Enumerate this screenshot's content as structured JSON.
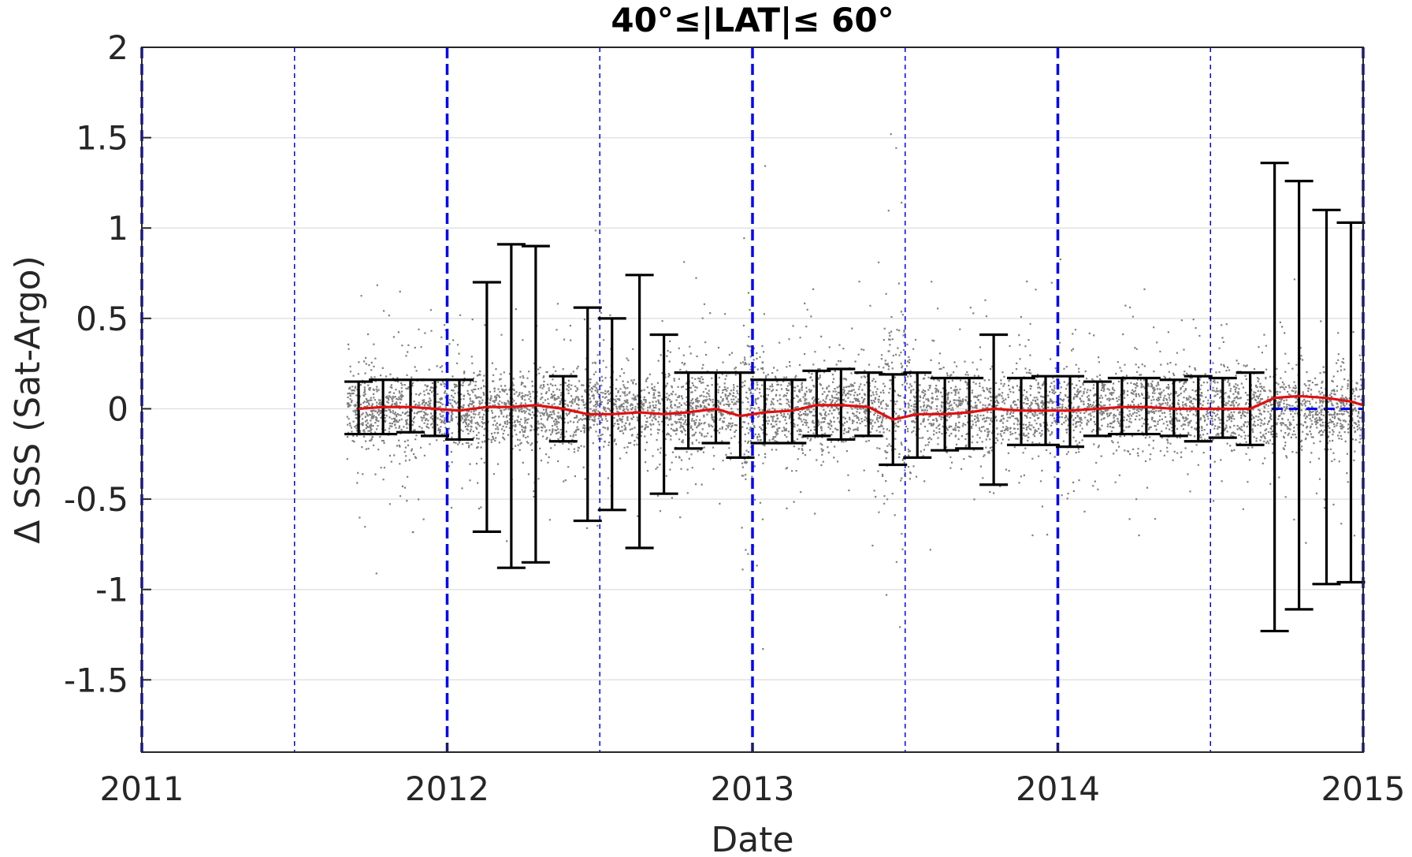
{
  "chart_data": {
    "type": "scatter",
    "title": "40°≤|LAT|≤ 60°",
    "xlabel": "Date",
    "ylabel": "Δ SSS (Sat-Argo)",
    "xlim": [
      2011,
      2015
    ],
    "ylim": [
      -1.9,
      2
    ],
    "xticks": [
      2011,
      2012,
      2013,
      2014,
      2015
    ],
    "xtick_labels": [
      "2011",
      "2012",
      "2013",
      "2014",
      "2015"
    ],
    "yticks": [
      -1.5,
      -1,
      -0.5,
      0,
      0.5,
      1,
      1.5,
      2
    ],
    "ytick_labels": [
      "-1.5",
      "-1",
      "-0.5",
      "0",
      "0.5",
      "1",
      "1.5",
      "2"
    ],
    "grid": "horizontal",
    "colors": {
      "scatter": "#808080",
      "mean_line": "#e01010",
      "errorbar": "#000000",
      "year_lines": "#0000ff",
      "zero_line": "#0000ff"
    },
    "scatter_density": {
      "x_range": [
        2011.67,
        2015
      ],
      "typical_spread_std": 0.1,
      "note_regions": "noisier spread near 2013.0 and 2013.5"
    },
    "mean_line": {
      "x": [
        2011.71,
        2011.79,
        2011.88,
        2011.96,
        2012.04,
        2012.13,
        2012.21,
        2012.29,
        2012.38,
        2012.46,
        2012.54,
        2012.63,
        2012.71,
        2012.79,
        2012.88,
        2012.96,
        2013.04,
        2013.13,
        2013.21,
        2013.29,
        2013.38,
        2013.46,
        2013.54,
        2013.63,
        2013.71,
        2013.79,
        2013.88,
        2013.96,
        2014.04,
        2014.13,
        2014.21,
        2014.29,
        2014.38,
        2014.46,
        2014.54,
        2014.63,
        2014.71,
        2014.79,
        2014.88,
        2014.96,
        2015.0
      ],
      "y": [
        0.0,
        0.01,
        0.01,
        0.0,
        -0.01,
        0.01,
        0.01,
        0.02,
        0.0,
        -0.03,
        -0.03,
        -0.02,
        -0.03,
        -0.02,
        0.0,
        -0.04,
        -0.02,
        -0.01,
        0.02,
        0.02,
        0.01,
        -0.06,
        -0.03,
        -0.03,
        -0.02,
        0.0,
        -0.01,
        -0.01,
        -0.01,
        0.0,
        0.01,
        0.01,
        0.0,
        0.0,
        0.0,
        0.0,
        0.06,
        0.07,
        0.06,
        0.04,
        0.02
      ]
    },
    "errorbars": [
      {
        "x": 2011.71,
        "lower": -0.14,
        "upper": 0.15
      },
      {
        "x": 2011.79,
        "lower": -0.14,
        "upper": 0.16
      },
      {
        "x": 2011.88,
        "lower": -0.13,
        "upper": 0.16
      },
      {
        "x": 2011.96,
        "lower": -0.15,
        "upper": 0.16
      },
      {
        "x": 2012.04,
        "lower": -0.17,
        "upper": 0.16
      },
      {
        "x": 2012.13,
        "lower": -0.68,
        "upper": 0.7
      },
      {
        "x": 2012.21,
        "lower": -0.88,
        "upper": 0.91
      },
      {
        "x": 2012.29,
        "lower": -0.85,
        "upper": 0.9
      },
      {
        "x": 2012.38,
        "lower": -0.18,
        "upper": 0.18
      },
      {
        "x": 2012.46,
        "lower": -0.62,
        "upper": 0.56
      },
      {
        "x": 2012.54,
        "lower": -0.56,
        "upper": 0.5
      },
      {
        "x": 2012.63,
        "lower": -0.77,
        "upper": 0.74
      },
      {
        "x": 2012.71,
        "lower": -0.47,
        "upper": 0.41
      },
      {
        "x": 2012.79,
        "lower": -0.22,
        "upper": 0.2
      },
      {
        "x": 2012.88,
        "lower": -0.19,
        "upper": 0.2
      },
      {
        "x": 2012.96,
        "lower": -0.27,
        "upper": 0.2
      },
      {
        "x": 2013.04,
        "lower": -0.19,
        "upper": 0.16
      },
      {
        "x": 2013.13,
        "lower": -0.19,
        "upper": 0.16
      },
      {
        "x": 2013.21,
        "lower": -0.15,
        "upper": 0.21
      },
      {
        "x": 2013.29,
        "lower": -0.17,
        "upper": 0.22
      },
      {
        "x": 2013.38,
        "lower": -0.15,
        "upper": 0.2
      },
      {
        "x": 2013.46,
        "lower": -0.31,
        "upper": 0.19
      },
      {
        "x": 2013.54,
        "lower": -0.27,
        "upper": 0.2
      },
      {
        "x": 2013.63,
        "lower": -0.23,
        "upper": 0.17
      },
      {
        "x": 2013.71,
        "lower": -0.22,
        "upper": 0.17
      },
      {
        "x": 2013.79,
        "lower": -0.42,
        "upper": 0.41
      },
      {
        "x": 2013.88,
        "lower": -0.2,
        "upper": 0.17
      },
      {
        "x": 2013.96,
        "lower": -0.2,
        "upper": 0.18
      },
      {
        "x": 2014.04,
        "lower": -0.21,
        "upper": 0.18
      },
      {
        "x": 2014.13,
        "lower": -0.15,
        "upper": 0.15
      },
      {
        "x": 2014.21,
        "lower": -0.14,
        "upper": 0.17
      },
      {
        "x": 2014.29,
        "lower": -0.14,
        "upper": 0.17
      },
      {
        "x": 2014.38,
        "lower": -0.15,
        "upper": 0.16
      },
      {
        "x": 2014.46,
        "lower": -0.18,
        "upper": 0.18
      },
      {
        "x": 2014.54,
        "lower": -0.16,
        "upper": 0.17
      },
      {
        "x": 2014.63,
        "lower": -0.2,
        "upper": 0.2
      },
      {
        "x": 2014.71,
        "lower": -1.23,
        "upper": 1.36
      },
      {
        "x": 2014.79,
        "lower": -1.11,
        "upper": 1.26
      },
      {
        "x": 2014.88,
        "lower": -0.97,
        "upper": 1.1
      },
      {
        "x": 2014.96,
        "lower": -0.96,
        "upper": 1.03
      }
    ],
    "vertical_lines": [
      {
        "x": 2011.0,
        "style": "thick-dashed"
      },
      {
        "x": 2011.5,
        "style": "thin-dashed"
      },
      {
        "x": 2012.0,
        "style": "thick-dashed"
      },
      {
        "x": 2012.5,
        "style": "thin-dashed"
      },
      {
        "x": 2013.0,
        "style": "thick-dashed"
      },
      {
        "x": 2013.5,
        "style": "thin-dashed"
      },
      {
        "x": 2014.0,
        "style": "thick-dashed"
      },
      {
        "x": 2014.5,
        "style": "thin-dashed"
      },
      {
        "x": 2015.0,
        "style": "thick-dashed"
      }
    ],
    "zero_reference_line": {
      "y": 0,
      "x_from": 2014.7,
      "style": "dashed"
    }
  }
}
